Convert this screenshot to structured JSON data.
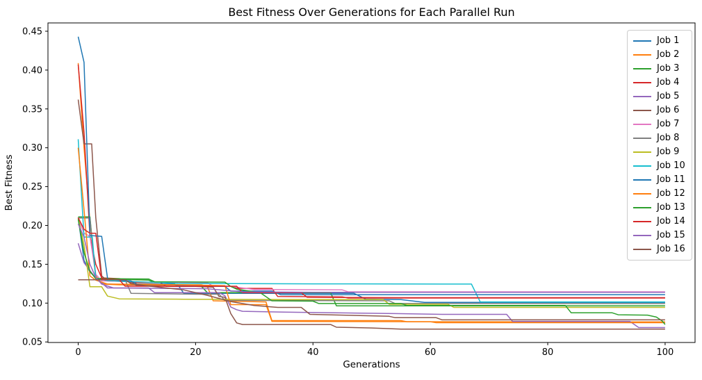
{
  "figure": {
    "title": "Best Fitness Over Generations for Each Parallel Run"
  },
  "chart_data": {
    "type": "line",
    "title": "Best Fitness Over Generations for Each Parallel Run",
    "xlabel": "Generations",
    "ylabel": "Best Fitness",
    "xlim": [
      -5.15,
      105.1
    ],
    "ylim": [
      0.0493,
      0.4607
    ],
    "grid": false,
    "xticks": {
      "values": [
        0,
        20,
        40,
        60,
        80,
        100
      ],
      "labels": [
        "0",
        "20",
        "40",
        "60",
        "80",
        "100"
      ]
    },
    "yticks": {
      "values": [
        0.05,
        0.1,
        0.15,
        0.2,
        0.25,
        0.3,
        0.35,
        0.4,
        0.45
      ],
      "labels": [
        "0.05",
        "0.10",
        "0.15",
        "0.20",
        "0.25",
        "0.30",
        "0.35",
        "0.40",
        "0.45"
      ]
    },
    "legend": {
      "position": "upper right"
    },
    "series": [
      {
        "name": "Job 1",
        "color": "#1f77b4",
        "points": [
          [
            0,
            0.21
          ],
          [
            1,
            0.155
          ],
          [
            2,
            0.14
          ],
          [
            3,
            0.133
          ],
          [
            4,
            0.1265
          ],
          [
            5,
            0.1245
          ],
          [
            8,
            0.1235
          ],
          [
            17,
            0.1235
          ],
          [
            18,
            0.1125
          ],
          [
            47,
            0.1125
          ],
          [
            49,
            0.105
          ],
          [
            55,
            0.1045
          ],
          [
            59,
            0.101
          ],
          [
            100,
            0.1008
          ]
        ]
      },
      {
        "name": "Job 2",
        "color": "#ff7f0e",
        "points": [
          [
            0,
            0.409
          ],
          [
            1,
            0.3
          ],
          [
            2,
            0.205
          ],
          [
            3,
            0.135
          ],
          [
            4,
            0.1245
          ],
          [
            7,
            0.1235
          ],
          [
            21,
            0.1235
          ],
          [
            22,
            0.1215
          ],
          [
            23,
            0.103
          ],
          [
            32,
            0.1015
          ],
          [
            33,
            0.0775
          ],
          [
            55,
            0.0775
          ],
          [
            56,
            0.076
          ],
          [
            100,
            0.0758
          ]
        ]
      },
      {
        "name": "Job 3",
        "color": "#2ca02c",
        "points": [
          [
            0,
            0.211
          ],
          [
            2,
            0.211
          ],
          [
            3,
            0.132
          ],
          [
            8,
            0.1305
          ],
          [
            12,
            0.1295
          ],
          [
            13,
            0.1265
          ],
          [
            16,
            0.1265
          ],
          [
            17,
            0.1215
          ],
          [
            21,
            0.1215
          ],
          [
            22,
            0.1135
          ],
          [
            43,
            0.1135
          ],
          [
            44,
            0.0965
          ],
          [
            100,
            0.0965
          ]
        ]
      },
      {
        "name": "Job 4",
        "color": "#d62728",
        "points": [
          [
            0,
            0.407
          ],
          [
            1,
            0.32
          ],
          [
            2,
            0.186
          ],
          [
            3,
            0.15
          ],
          [
            4,
            0.1325
          ],
          [
            7,
            0.1315
          ],
          [
            8,
            0.1295
          ],
          [
            9,
            0.1265
          ],
          [
            14,
            0.1265
          ],
          [
            15,
            0.1215
          ],
          [
            26,
            0.1215
          ],
          [
            27,
            0.119
          ],
          [
            33,
            0.119
          ],
          [
            34,
            0.1085
          ],
          [
            45,
            0.108
          ],
          [
            46,
            0.1065
          ],
          [
            100,
            0.1065
          ]
        ]
      },
      {
        "name": "Job 5",
        "color": "#9467bd",
        "points": [
          [
            0,
            0.177
          ],
          [
            1,
            0.152
          ],
          [
            3,
            0.132
          ],
          [
            4,
            0.126
          ],
          [
            5,
            0.1195
          ],
          [
            12,
            0.1195
          ],
          [
            13,
            0.1135
          ],
          [
            24,
            0.1135
          ],
          [
            25,
            0.1095
          ],
          [
            26,
            0.095
          ],
          [
            27,
            0.0915
          ],
          [
            28,
            0.0895
          ],
          [
            35,
            0.0885
          ],
          [
            54,
            0.0865
          ],
          [
            62,
            0.0855
          ],
          [
            73,
            0.0855
          ],
          [
            74,
            0.0765
          ],
          [
            94,
            0.0765
          ],
          [
            95.5,
            0.0685
          ],
          [
            100,
            0.0685
          ]
        ]
      },
      {
        "name": "Job 6",
        "color": "#8c564b",
        "points": [
          [
            0,
            0.362
          ],
          [
            1,
            0.305
          ],
          [
            2.3,
            0.305
          ],
          [
            3,
            0.21
          ],
          [
            4,
            0.135
          ],
          [
            5,
            0.1285
          ],
          [
            9,
            0.1275
          ],
          [
            10,
            0.1225
          ],
          [
            20,
            0.1215
          ],
          [
            23,
            0.1205
          ],
          [
            24,
            0.1085
          ],
          [
            25,
            0.1075
          ],
          [
            26,
            0.0865
          ],
          [
            27,
            0.0745
          ],
          [
            28,
            0.0725
          ],
          [
            43,
            0.0725
          ],
          [
            44,
            0.069
          ],
          [
            50,
            0.068
          ],
          [
            55,
            0.0665
          ],
          [
            100,
            0.0665
          ]
        ]
      },
      {
        "name": "Job 7",
        "color": "#e377c2",
        "points": [
          [
            0,
            0.21
          ],
          [
            1,
            0.19
          ],
          [
            2,
            0.186
          ],
          [
            3,
            0.137
          ],
          [
            4,
            0.1285
          ],
          [
            8,
            0.128
          ],
          [
            12,
            0.127
          ],
          [
            22,
            0.1265
          ],
          [
            23,
            0.1215
          ],
          [
            26,
            0.1215
          ],
          [
            30,
            0.1175
          ],
          [
            45,
            0.117
          ],
          [
            46,
            0.1145
          ],
          [
            100,
            0.1145
          ]
        ]
      },
      {
        "name": "Job 8",
        "color": "#7f7f7f",
        "points": [
          [
            0,
            0.2095
          ],
          [
            2,
            0.2095
          ],
          [
            3,
            0.1315
          ],
          [
            4,
            0.13
          ],
          [
            8,
            0.13
          ],
          [
            9,
            0.1125
          ],
          [
            20,
            0.1115
          ],
          [
            24,
            0.1115
          ],
          [
            25,
            0.1035
          ],
          [
            53,
            0.103
          ],
          [
            54,
            0.0995
          ],
          [
            100,
            0.0995
          ]
        ]
      },
      {
        "name": "Job 9",
        "color": "#bcbd22",
        "points": [
          [
            0,
            0.21
          ],
          [
            1,
            0.175
          ],
          [
            2,
            0.121
          ],
          [
            4,
            0.121
          ],
          [
            5,
            0.109
          ],
          [
            7,
            0.1055
          ],
          [
            18,
            0.105
          ],
          [
            40,
            0.1045
          ],
          [
            52,
            0.1045
          ],
          [
            53,
            0.0985
          ],
          [
            63,
            0.0985
          ],
          [
            64,
            0.0945
          ],
          [
            100,
            0.0945
          ]
        ]
      },
      {
        "name": "Job 10",
        "color": "#17becf",
        "points": [
          [
            0,
            0.311
          ],
          [
            1,
            0.185
          ],
          [
            2.4,
            0.185
          ],
          [
            3,
            0.132
          ],
          [
            5,
            0.129
          ],
          [
            8,
            0.128
          ],
          [
            14,
            0.1265
          ],
          [
            17,
            0.1253
          ],
          [
            40,
            0.1248
          ],
          [
            67,
            0.1245
          ],
          [
            68.5,
            0.1015
          ],
          [
            100,
            0.1015
          ]
        ]
      },
      {
        "name": "Job 11",
        "color": "#1f77b4",
        "points": [
          [
            0,
            0.443
          ],
          [
            1,
            0.41
          ],
          [
            2,
            0.187
          ],
          [
            4,
            0.186
          ],
          [
            5,
            0.132
          ],
          [
            6,
            0.13
          ],
          [
            9,
            0.1285
          ],
          [
            10,
            0.1245
          ],
          [
            16,
            0.1245
          ],
          [
            17,
            0.1225
          ],
          [
            25,
            0.1215
          ],
          [
            26,
            0.1155
          ],
          [
            33,
            0.1155
          ],
          [
            34.5,
            0.1108
          ],
          [
            100,
            0.1108
          ]
        ]
      },
      {
        "name": "Job 12",
        "color": "#ff7f0e",
        "points": [
          [
            0,
            0.3
          ],
          [
            1,
            0.22
          ],
          [
            2,
            0.135
          ],
          [
            3,
            0.1295
          ],
          [
            5,
            0.1245
          ],
          [
            18,
            0.1235
          ],
          [
            25,
            0.1225
          ],
          [
            26,
            0.098
          ],
          [
            32,
            0.098
          ],
          [
            33,
            0.0765
          ],
          [
            60,
            0.076
          ],
          [
            61,
            0.0748
          ],
          [
            100,
            0.0748
          ]
        ]
      },
      {
        "name": "Job 13",
        "color": "#2ca02c",
        "points": [
          [
            0,
            0.208
          ],
          [
            1,
            0.165
          ],
          [
            2,
            0.141
          ],
          [
            3,
            0.1315
          ],
          [
            12,
            0.131
          ],
          [
            13,
            0.1275
          ],
          [
            25,
            0.127
          ],
          [
            26,
            0.1215
          ],
          [
            27,
            0.118
          ],
          [
            31,
            0.1135
          ],
          [
            33,
            0.103
          ],
          [
            40,
            0.1025
          ],
          [
            41,
            0.0995
          ],
          [
            55,
            0.0995
          ],
          [
            56,
            0.097
          ],
          [
            83,
            0.097
          ],
          [
            84,
            0.0875
          ],
          [
            91,
            0.0875
          ],
          [
            92,
            0.085
          ],
          [
            97,
            0.0845
          ],
          [
            98.5,
            0.082
          ],
          [
            99.5,
            0.077
          ],
          [
            100,
            0.0725
          ]
        ]
      },
      {
        "name": "Job 14",
        "color": "#d62728",
        "points": [
          [
            0,
            0.21
          ],
          [
            1,
            0.195
          ],
          [
            2,
            0.19
          ],
          [
            3,
            0.19
          ],
          [
            4,
            0.131
          ],
          [
            7,
            0.13
          ],
          [
            8,
            0.1217
          ],
          [
            27,
            0.1217
          ],
          [
            28,
            0.1135
          ],
          [
            38,
            0.1135
          ],
          [
            39,
            0.1075
          ],
          [
            55,
            0.107
          ],
          [
            100,
            0.107
          ]
        ]
      },
      {
        "name": "Job 15",
        "color": "#9467bd",
        "points": [
          [
            0,
            0.202
          ],
          [
            1,
            0.185
          ],
          [
            2,
            0.15
          ],
          [
            3,
            0.133
          ],
          [
            4,
            0.1245
          ],
          [
            6,
            0.1195
          ],
          [
            14,
            0.119
          ],
          [
            22,
            0.1185
          ],
          [
            28,
            0.1145
          ],
          [
            40,
            0.114
          ],
          [
            100,
            0.114
          ]
        ]
      },
      {
        "name": "Job 16",
        "color": "#8c564b",
        "points": [
          [
            0,
            0.13
          ],
          [
            8,
            0.13
          ],
          [
            9,
            0.125
          ],
          [
            12,
            0.122
          ],
          [
            18,
            0.117
          ],
          [
            22,
            0.11
          ],
          [
            26,
            0.102
          ],
          [
            30,
            0.097
          ],
          [
            34,
            0.0945
          ],
          [
            38,
            0.0945
          ],
          [
            39.5,
            0.0855
          ],
          [
            53,
            0.083
          ],
          [
            54,
            0.0812
          ],
          [
            61,
            0.0812
          ],
          [
            62,
            0.0785
          ],
          [
            100,
            0.0785
          ]
        ]
      }
    ]
  }
}
